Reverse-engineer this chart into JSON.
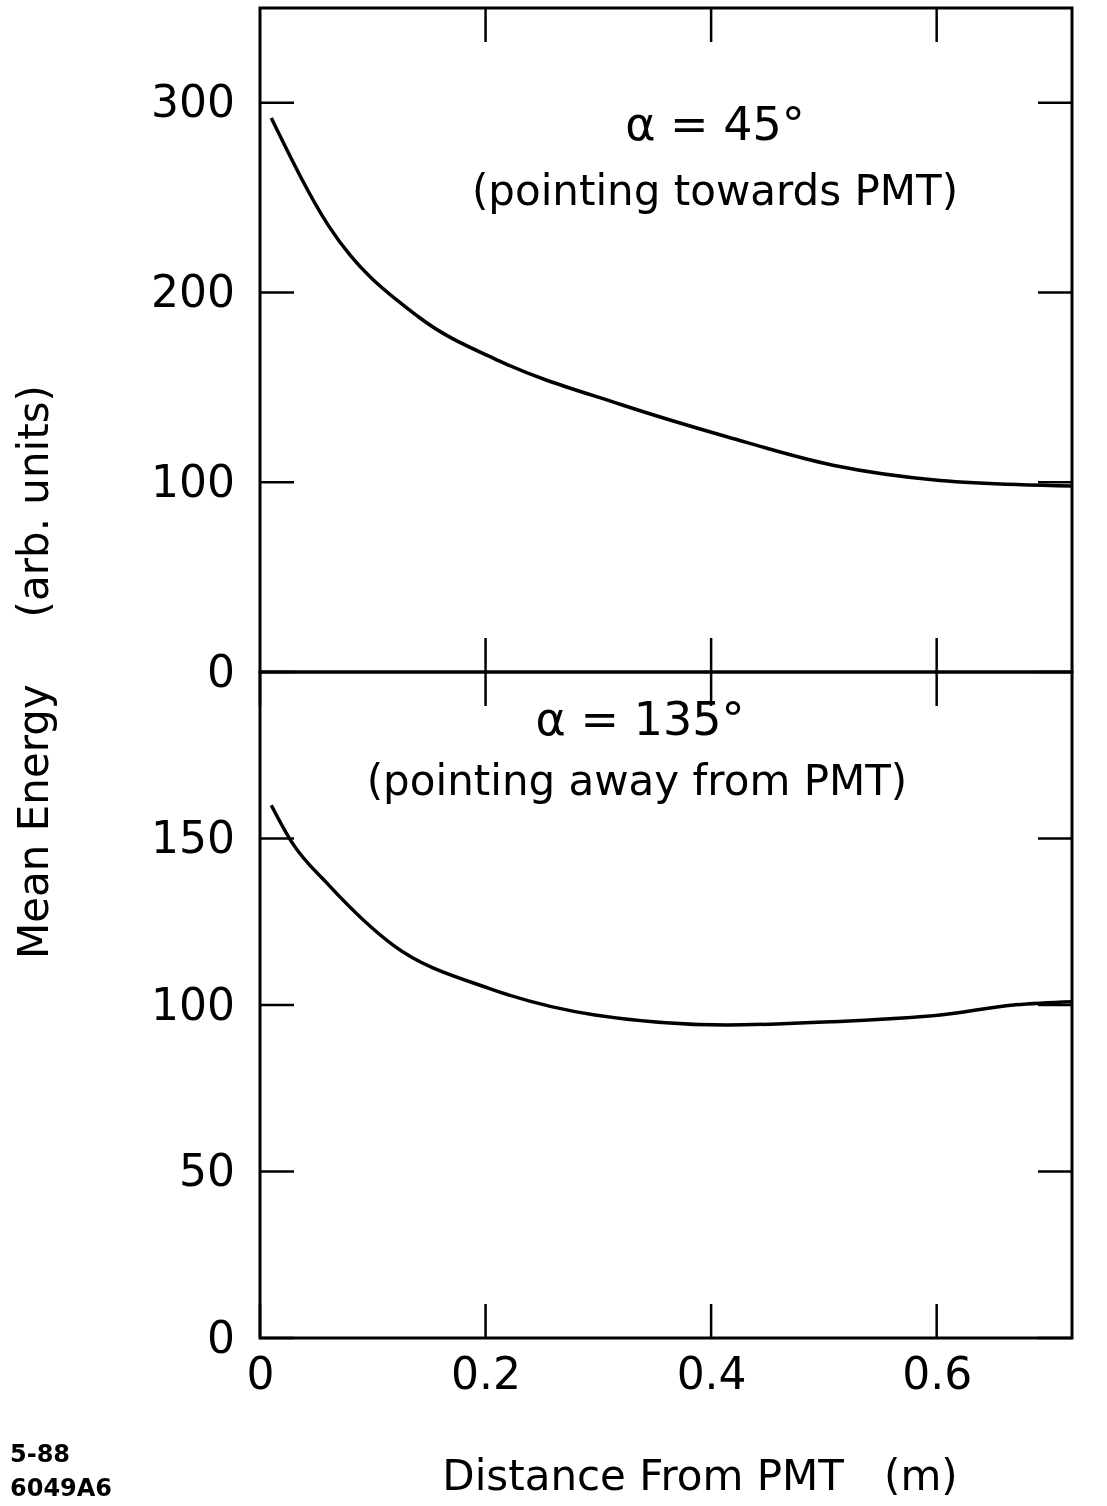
{
  "chart_data": [
    {
      "type": "line",
      "ylabel": "Mean Energy     (arb. units)",
      "xlim": [
        0,
        0.72
      ],
      "xticks": [
        {
          "value": 0.2,
          "label": null
        },
        {
          "value": 0.4,
          "label": null
        },
        {
          "value": 0.6,
          "label": null
        }
      ],
      "ylim": [
        0,
        350
      ],
      "yticks": [
        0,
        100,
        200,
        300
      ],
      "tick_labels": "y",
      "grid": false,
      "annotations": [
        "α = 45°",
        "(pointing towards PMT)"
      ],
      "series": [
        {
          "color": "#000000",
          "x": [
            0.01,
            0.061,
            0.141,
            0.212,
            0.32,
            0.414,
            0.508,
            0.603,
            0.72
          ],
          "values": [
            292,
            235,
            187,
            164,
            141,
            124,
            109,
            101,
            98
          ]
        }
      ]
    },
    {
      "type": "line",
      "xlabel": "Distance From PMT   (m)",
      "xlim": [
        0,
        0.72
      ],
      "xticks": [
        0,
        0.2,
        0.4,
        0.6
      ],
      "ylim": [
        0,
        200
      ],
      "yticks": [
        0,
        50,
        100,
        150
      ],
      "grid": false,
      "annotations": [
        "α = 135°",
        "(pointing away from PMT)",
        "5-88",
        "6049A6"
      ],
      "series": [
        {
          "color": "#000000",
          "x": [
            0.01,
            0.028,
            0.061,
            0.118,
            0.203,
            0.297,
            0.414,
            0.508,
            0.603,
            0.668,
            0.72
          ],
          "values": [
            160,
            149,
            136,
            118,
            105,
            97,
            94,
            95,
            97,
            100,
            101
          ]
        }
      ]
    }
  ]
}
